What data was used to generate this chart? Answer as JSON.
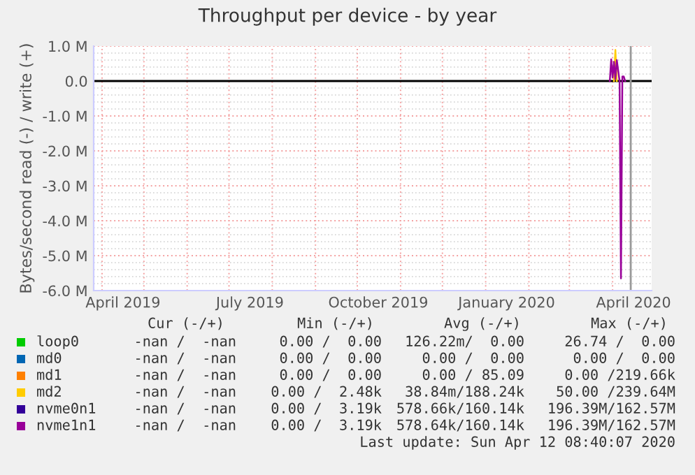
{
  "chart_data": {
    "type": "line",
    "title": "Throughput per device - by year",
    "ylabel": "Bytes/second read (-) / write (+)",
    "xlim": [
      "2019-03-26",
      "2020-04-29"
    ],
    "ylim": [
      -6000000,
      1000000
    ],
    "xticks": [
      {
        "value": "2019-04-16",
        "label": "April 2019"
      },
      {
        "value": "2019-07-16",
        "label": "July 2019"
      },
      {
        "value": "2019-10-16",
        "label": "October 2019"
      },
      {
        "value": "2020-01-16",
        "label": "January 2020"
      },
      {
        "value": "2020-04-16",
        "label": "April 2020"
      }
    ],
    "yticks": [
      {
        "value": 1000000,
        "label": "1.0 M"
      },
      {
        "value": 0,
        "label": "0.0"
      },
      {
        "value": -1000000,
        "label": "-1.0 M"
      },
      {
        "value": -2000000,
        "label": "-2.0 M"
      },
      {
        "value": -3000000,
        "label": "-3.0 M"
      },
      {
        "value": -4000000,
        "label": "-4.0 M"
      },
      {
        "value": -5000000,
        "label": "-5.0 M"
      },
      {
        "value": -6000000,
        "label": "-6.0 M"
      }
    ],
    "grid": true,
    "legend": "bottom",
    "series": [
      {
        "name": "loop0",
        "color": "#00cc00"
      },
      {
        "name": "md0",
        "color": "#0066b3"
      },
      {
        "name": "md1",
        "color": "#ff8000"
      },
      {
        "name": "md2",
        "color": "#ffcc00",
        "x": [
          "2020-04-02",
          "2020-04-03",
          "2020-04-04"
        ],
        "values": [
          0,
          890000,
          0
        ]
      },
      {
        "name": "nvme0n1",
        "color": "#330099"
      },
      {
        "name": "nvme1n1",
        "color": "#990099",
        "x": [
          "2020-03-30",
          "2020-03-31",
          "2020-04-01",
          "2020-04-02",
          "2020-04-03",
          "2020-04-04",
          "2020-04-05",
          "2020-04-06",
          "2020-04-07",
          "2020-04-08",
          "2020-04-09",
          "2020-04-10"
        ],
        "values": [
          0,
          620000,
          100000,
          550000,
          50000,
          600000,
          300000,
          0,
          -5650000,
          130000,
          130000,
          0
        ]
      }
    ],
    "ref_lines": [
      {
        "axis": "y",
        "value": 0,
        "color": "#000000"
      },
      {
        "axis": "x",
        "value": "2020-04-14",
        "color": "#999999"
      }
    ],
    "annotations": [
      "Cur (-/+)",
      "Min (-/+)",
      "Avg (-/+)",
      "Max (-/+)",
      "-nan /  -nan",
      "0.00 /  0.00",
      "126.22m/  0.00",
      "26.74 /  0.00",
      "-nan /  -nan",
      "0.00 /  0.00",
      "0.00 /  0.00",
      "0.00 /  0.00",
      "-nan /  -nan",
      "0.00 /  0.00",
      "0.00 / 85.09",
      "0.00 /219.66k",
      "-nan /  -nan",
      "0.00 /  2.48k",
      "38.84m/188.24k",
      "50.00 /239.64M",
      "-nan /  -nan",
      "0.00 /  3.19k",
      "578.66k/160.14k",
      "196.39M/162.57M",
      "-nan /  -nan",
      "0.00 /  3.19k",
      "578.64k/160.14k",
      "196.39M/162.57M",
      "Last update: Sun Apr 12 08:40:07 2020"
    ]
  }
}
